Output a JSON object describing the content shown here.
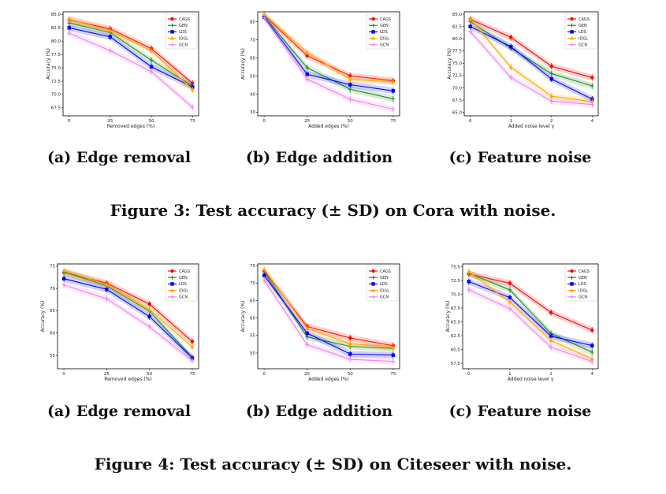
{
  "figures": [
    {
      "caption": "Figure 3: Test accuracy (± SD) on Cora with noise.",
      "subcaptions": [
        "(a) Edge removal",
        "(b) Edge addition",
        "(c) Feature noise"
      ]
    },
    {
      "caption": "Figure 4: Test accuracy (± SD) on Citeseer with noise.",
      "subcaptions": [
        "(a) Edge removal",
        "(b) Edge addition",
        "(c) Feature noise"
      ]
    }
  ],
  "series_style": [
    {
      "name": "CAGS",
      "color": "#ff0000",
      "marker": "circle"
    },
    {
      "name": "GEN",
      "color": "#228b22",
      "marker": "plus"
    },
    {
      "name": "LDS",
      "color": "#0000ff",
      "marker": "square"
    },
    {
      "name": "IDGL",
      "color": "#ffa500",
      "marker": "triangle"
    },
    {
      "name": "GCN",
      "color": "#ee82ee",
      "marker": "plus"
    }
  ],
  "chart_data": [
    {
      "type": "line",
      "xlabel": "Removed edges (%)",
      "ylabel": "Accuracy (%)",
      "categories": [
        "0",
        "25",
        "50",
        "75"
      ],
      "ylim": [
        66,
        85.5
      ],
      "yticks": [
        "67.5",
        "70.0",
        "72.5",
        "75.0",
        "77.5",
        "80.0",
        "82.5",
        "85.0"
      ],
      "legend": "top-right",
      "series": [
        {
          "name": "CAGS",
          "values": [
            84,
            82.3,
            78.6,
            72.1
          ]
        },
        {
          "name": "GEN",
          "values": [
            83.4,
            81.6,
            76.4,
            71.6
          ]
        },
        {
          "name": "LDS",
          "values": [
            82.5,
            80.8,
            75.2,
            71.4
          ]
        },
        {
          "name": "IDGL",
          "values": [
            84.1,
            82,
            78.2,
            70.9
          ]
        },
        {
          "name": "GCN",
          "values": [
            81.5,
            78.2,
            74.3,
            67.6
          ]
        }
      ]
    },
    {
      "type": "line",
      "xlabel": "Added edges (%)",
      "ylabel": "Accuracy (%)",
      "categories": [
        "0",
        "25",
        "50",
        "75"
      ],
      "ylim": [
        28,
        85.5
      ],
      "yticks": [
        "30",
        "40",
        "50",
        "60",
        "70",
        "80"
      ],
      "legend": "top-right",
      "series": [
        {
          "name": "CAGS",
          "values": [
            83.5,
            61.3,
            50.1,
            47.4
          ]
        },
        {
          "name": "GEN",
          "values": [
            83,
            54.6,
            42.7,
            37.4
          ]
        },
        {
          "name": "LDS",
          "values": [
            82.6,
            51,
            45.2,
            41.8
          ]
        },
        {
          "name": "IDGL",
          "values": [
            84,
            63.2,
            48.1,
            46.9
          ]
        },
        {
          "name": "GCN",
          "values": [
            82.2,
            48.3,
            37.1,
            31.7
          ]
        }
      ]
    },
    {
      "type": "line",
      "xlabel": "Added noise level γ",
      "ylabel": "Accuracy (%)",
      "categories": [
        "0",
        "1",
        "2",
        "4"
      ],
      "ylim": [
        64.3,
        85.5
      ],
      "yticks": [
        "65.0",
        "67.5",
        "70.0",
        "72.5",
        "75.0",
        "77.5",
        "80.0",
        "82.5",
        "85.0"
      ],
      "legend": "top-right",
      "series": [
        {
          "name": "CAGS",
          "values": [
            84,
            80.3,
            74.4,
            72.1
          ]
        },
        {
          "name": "GEN",
          "values": [
            83.5,
            78.1,
            72.9,
            70.4
          ]
        },
        {
          "name": "LDS",
          "values": [
            82.5,
            78.4,
            71.8,
            67.7
          ]
        },
        {
          "name": "IDGL",
          "values": [
            84.1,
            74.2,
            68.3,
            67.2
          ]
        },
        {
          "name": "GCN",
          "values": [
            81.5,
            72.1,
            67.3,
            66.6
          ]
        }
      ]
    },
    {
      "type": "line",
      "xlabel": "Removed edges (%)",
      "ylabel": "Accuracy (%)",
      "categories": [
        "0",
        "25",
        "50",
        "75"
      ],
      "ylim": [
        52,
        75.5
      ],
      "yticks": [
        "55",
        "60",
        "65",
        "70",
        "75"
      ],
      "legend": "top-right",
      "series": [
        {
          "name": "CAGS",
          "values": [
            73.6,
            71.2,
            66.5,
            58.1
          ]
        },
        {
          "name": "GEN",
          "values": [
            73.7,
            70.6,
            64.9,
            54.5
          ]
        },
        {
          "name": "LDS",
          "values": [
            72.2,
            69.8,
            63.7,
            54.4
          ]
        },
        {
          "name": "IDGL",
          "values": [
            74,
            70.9,
            65.3,
            56.9
          ]
        },
        {
          "name": "GCN",
          "values": [
            70.8,
            67.7,
            61.4,
            53.8
          ]
        }
      ]
    },
    {
      "type": "line",
      "xlabel": "Added edges (%)",
      "ylabel": "Accuracy (%)",
      "categories": [
        "0",
        "25",
        "50",
        "75"
      ],
      "ylim": [
        45.5,
        75.5
      ],
      "yticks": [
        "50",
        "55",
        "60",
        "65",
        "70",
        "75"
      ],
      "legend": "top-right",
      "series": [
        {
          "name": "CAGS",
          "values": [
            73.5,
            57.6,
            54.3,
            52.1
          ]
        },
        {
          "name": "GEN",
          "values": [
            73.2,
            54.6,
            51.9,
            51.3
          ]
        },
        {
          "name": "LDS",
          "values": [
            72.2,
            55.7,
            49.7,
            49.4
          ]
        },
        {
          "name": "IDGL",
          "values": [
            74,
            57,
            52.7,
            51.6
          ]
        },
        {
          "name": "GCN",
          "values": [
            70.9,
            52.4,
            48.2,
            47.6
          ]
        }
      ]
    },
    {
      "type": "line",
      "xlabel": "Added noise level γ",
      "ylabel": "Accuracy (%)",
      "categories": [
        "0",
        "1",
        "2",
        "4"
      ],
      "ylim": [
        56.5,
        75.5
      ],
      "yticks": [
        "57.5",
        "60.0",
        "62.5",
        "65.0",
        "67.5",
        "70.0",
        "72.5",
        "75.0"
      ],
      "legend": "top-right",
      "series": [
        {
          "name": "CAGS",
          "values": [
            73.7,
            72,
            66.7,
            63.5
          ]
        },
        {
          "name": "GEN",
          "values": [
            73.8,
            70.8,
            62.9,
            59.5
          ]
        },
        {
          "name": "LDS",
          "values": [
            72.3,
            69.4,
            62.4,
            60.7
          ]
        },
        {
          "name": "IDGL",
          "values": [
            74.1,
            68.6,
            61.6,
            58.3
          ]
        },
        {
          "name": "GCN",
          "values": [
            70.8,
            67.4,
            60.4,
            57.8
          ]
        }
      ]
    }
  ]
}
